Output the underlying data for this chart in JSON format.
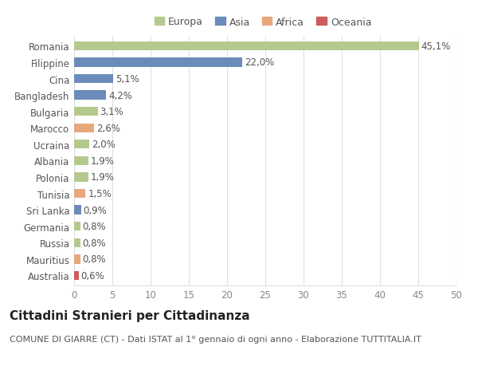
{
  "categories": [
    "Romania",
    "Filippine",
    "Cina",
    "Bangladesh",
    "Bulgaria",
    "Marocco",
    "Ucraina",
    "Albania",
    "Polonia",
    "Tunisia",
    "Sri Lanka",
    "Germania",
    "Russia",
    "Mauritius",
    "Australia"
  ],
  "values": [
    45.1,
    22.0,
    5.1,
    4.2,
    3.1,
    2.6,
    2.0,
    1.9,
    1.9,
    1.5,
    0.9,
    0.8,
    0.8,
    0.8,
    0.6
  ],
  "labels": [
    "45,1%",
    "22,0%",
    "5,1%",
    "4,2%",
    "3,1%",
    "2,6%",
    "2,0%",
    "1,9%",
    "1,9%",
    "1,5%",
    "0,9%",
    "0,8%",
    "0,8%",
    "0,8%",
    "0,6%"
  ],
  "colors": [
    "#b5c98e",
    "#6b8cba",
    "#6b8cba",
    "#6b8cba",
    "#b5c98e",
    "#e8a87c",
    "#b5c98e",
    "#b5c98e",
    "#b5c98e",
    "#e8a87c",
    "#6b8cba",
    "#b5c98e",
    "#b5c98e",
    "#e8a87c",
    "#cd5c5c"
  ],
  "continent": [
    "Europa",
    "Asia",
    "Asia",
    "Asia",
    "Europa",
    "Africa",
    "Europa",
    "Europa",
    "Europa",
    "Africa",
    "Asia",
    "Europa",
    "Europa",
    "Africa",
    "Oceania"
  ],
  "legend_labels": [
    "Europa",
    "Asia",
    "Africa",
    "Oceania"
  ],
  "legend_colors": [
    "#b5c98e",
    "#6b8cba",
    "#e8a87c",
    "#cd5c5c"
  ],
  "title": "Cittadini Stranieri per Cittadinanza",
  "subtitle": "COMUNE DI GIARRE (CT) - Dati ISTAT al 1° gennaio di ogni anno - Elaborazione TUTTITALIA.IT",
  "xlim": [
    0,
    50
  ],
  "xticks": [
    0,
    5,
    10,
    15,
    20,
    25,
    30,
    35,
    40,
    45,
    50
  ],
  "background_color": "#ffffff",
  "grid_color": "#e0e0e0",
  "bar_height": 0.55,
  "label_fontsize": 8.5,
  "tick_fontsize": 8.5,
  "title_fontsize": 11,
  "subtitle_fontsize": 8,
  "legend_fontsize": 9
}
